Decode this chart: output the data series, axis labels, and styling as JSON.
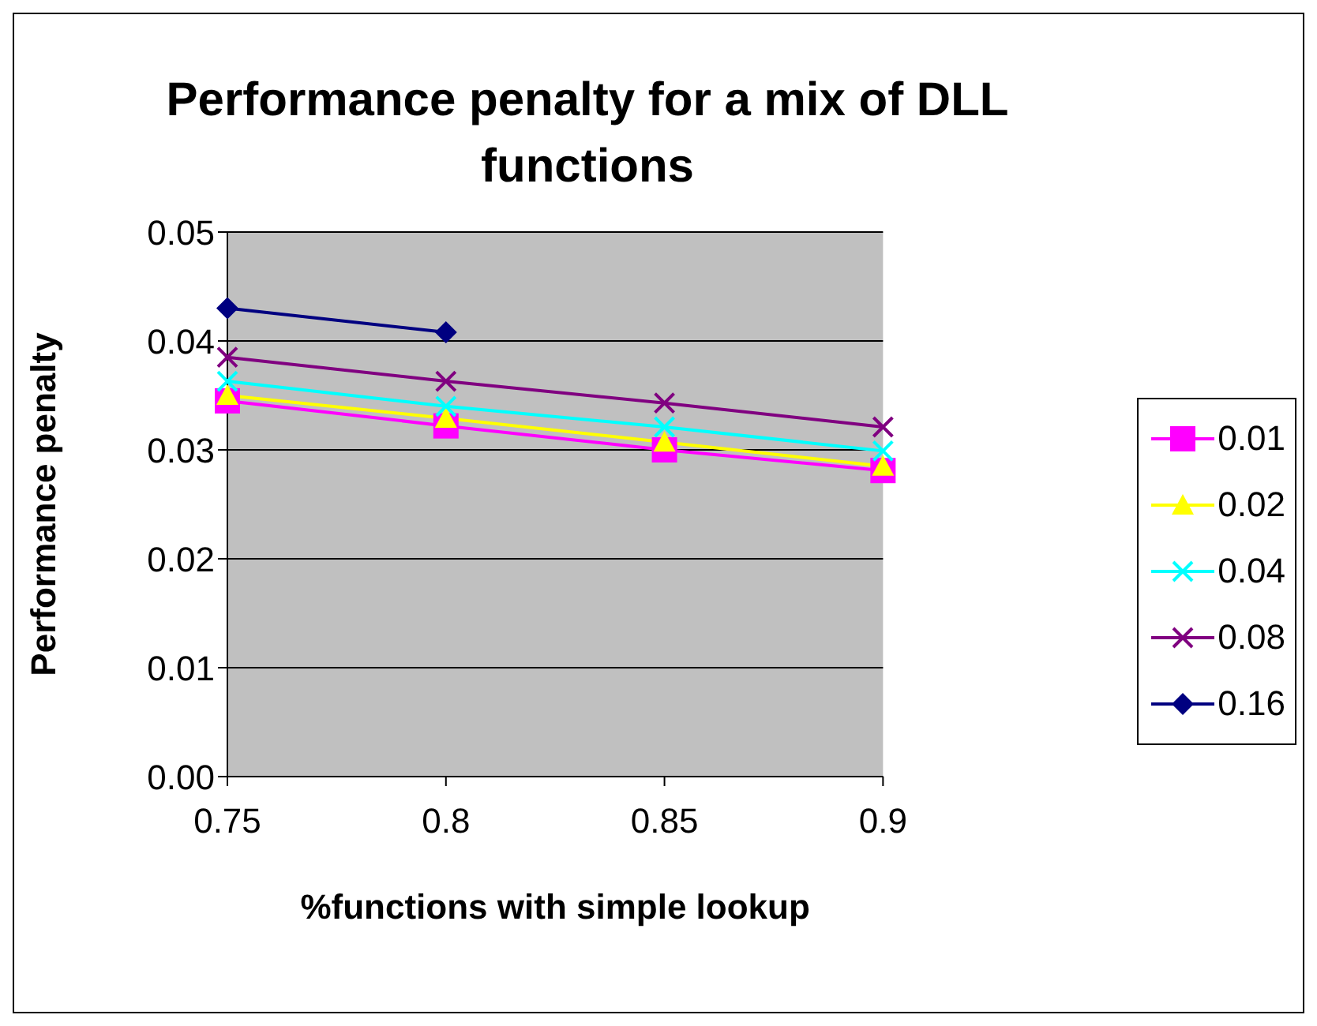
{
  "chart_data": {
    "type": "line",
    "title": "Performance penalty for a mix of DLL functions",
    "xlabel": "%functions with simple lookup",
    "ylabel": "Performance penalty",
    "categories": [
      "0.75",
      "0.8",
      "0.85",
      "0.9"
    ],
    "series": [
      {
        "name": "0.01",
        "color": "#ff00ff",
        "marker": "square",
        "values": [
          0.0345,
          0.0322,
          0.03,
          0.0281
        ]
      },
      {
        "name": "0.02",
        "color": "#ffff00",
        "marker": "triangle",
        "values": [
          0.035,
          0.0329,
          0.0307,
          0.0285
        ]
      },
      {
        "name": "0.04",
        "color": "#00ffff",
        "marker": "cross",
        "values": [
          0.0363,
          0.034,
          0.0321,
          0.0299
        ]
      },
      {
        "name": "0.08",
        "color": "#800080",
        "marker": "cross",
        "values": [
          0.0385,
          0.0363,
          0.0343,
          0.0321
        ]
      },
      {
        "name": "0.16",
        "color": "#000080",
        "marker": "diamond",
        "values": [
          0.043,
          0.0408,
          null,
          null
        ]
      }
    ],
    "ylim": [
      0,
      0.05
    ],
    "yticks": [
      {
        "value": 0,
        "label": "0.00"
      },
      {
        "value": 0.01,
        "label": "0.01"
      },
      {
        "value": 0.02,
        "label": "0.02"
      },
      {
        "value": 0.03,
        "label": "0.03"
      },
      {
        "value": 0.04,
        "label": "0.04"
      },
      {
        "value": 0.05,
        "label": "0.05"
      }
    ],
    "grid": "y",
    "legend": "right"
  }
}
